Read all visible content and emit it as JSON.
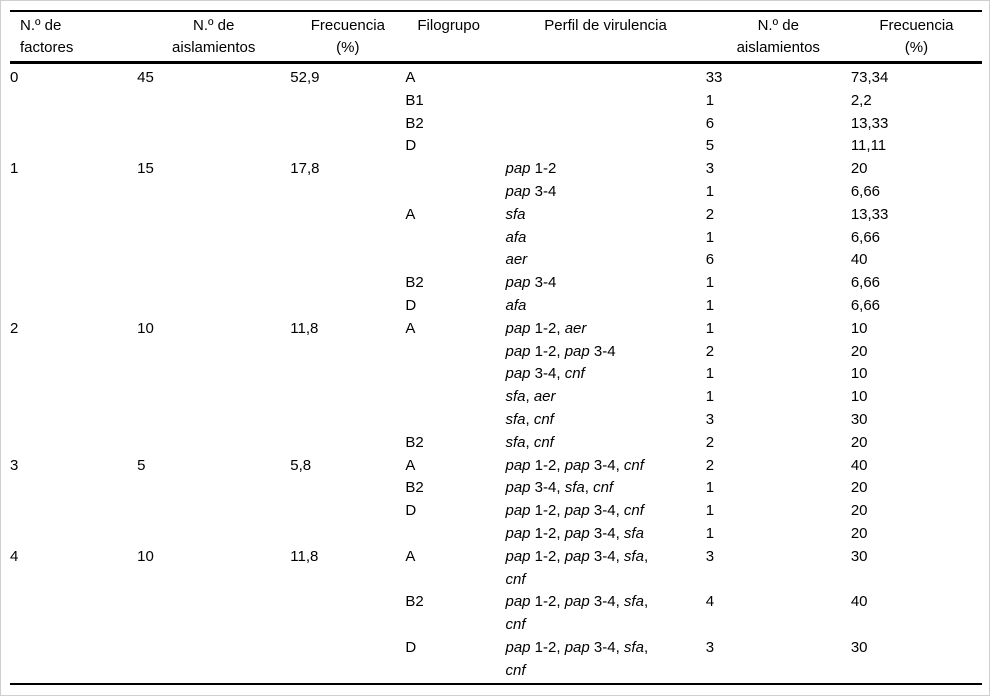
{
  "page": {
    "background": "#ffffff",
    "frame_color": "#cfcfcf",
    "rule_color": "#000000",
    "text_color": "#000000"
  },
  "table": {
    "columns": [
      {
        "id": "factores",
        "label_lines": [
          "N.º de",
          "factores"
        ],
        "align": "left"
      },
      {
        "id": "aislamientos",
        "label_lines": [
          "N.º de",
          "aislamientos"
        ],
        "align": "center"
      },
      {
        "id": "frecuencia",
        "label_lines": [
          "Frecuencia",
          "(%)"
        ],
        "align": "center"
      },
      {
        "id": "filogrupo",
        "label_lines": [
          "Filogrupo"
        ],
        "align": "left"
      },
      {
        "id": "perfil",
        "label_lines": [
          "Perfil de virulencia"
        ],
        "align": "center"
      },
      {
        "id": "aislamientos2",
        "label_lines": [
          "N.º de",
          "aislamientos"
        ],
        "align": "center"
      },
      {
        "id": "frecuencia2",
        "label_lines": [
          "Frecuencia",
          "(%)"
        ],
        "align": "center"
      }
    ],
    "italic_genes": [
      "pap",
      "sfa",
      "afa",
      "aer",
      "cnf"
    ],
    "rows": [
      {
        "factores": "0",
        "aislamientos": "45",
        "frecuencia": "52,9",
        "filogrupo": "A",
        "perfil": "",
        "aislamientos2": "33",
        "frecuencia2": "73,34"
      },
      {
        "factores": "",
        "aislamientos": "",
        "frecuencia": "",
        "filogrupo": "B1",
        "perfil": "",
        "aislamientos2": "1",
        "frecuencia2": "2,2"
      },
      {
        "factores": "",
        "aislamientos": "",
        "frecuencia": "",
        "filogrupo": "B2",
        "perfil": "",
        "aislamientos2": "6",
        "frecuencia2": "13,33"
      },
      {
        "factores": "",
        "aislamientos": "",
        "frecuencia": "",
        "filogrupo": "D",
        "perfil": "",
        "aislamientos2": "5",
        "frecuencia2": "11,11"
      },
      {
        "factores": "1",
        "aislamientos": "15",
        "frecuencia": "17,8",
        "filogrupo": "",
        "perfil": "pap 1-2",
        "aislamientos2": "3",
        "frecuencia2": "20"
      },
      {
        "factores": "",
        "aislamientos": "",
        "frecuencia": "",
        "filogrupo": "",
        "perfil": "pap 3-4",
        "aislamientos2": "1",
        "frecuencia2": "6,66"
      },
      {
        "factores": "",
        "aislamientos": "",
        "frecuencia": "",
        "filogrupo": "A",
        "perfil": "sfa",
        "aislamientos2": "2",
        "frecuencia2": "13,33"
      },
      {
        "factores": "",
        "aislamientos": "",
        "frecuencia": "",
        "filogrupo": "",
        "perfil": "afa",
        "aislamientos2": "1",
        "frecuencia2": "6,66"
      },
      {
        "factores": "",
        "aislamientos": "",
        "frecuencia": "",
        "filogrupo": "",
        "perfil": "aer",
        "aislamientos2": "6",
        "frecuencia2": "40"
      },
      {
        "factores": "",
        "aislamientos": "",
        "frecuencia": "",
        "filogrupo": "B2",
        "perfil": "pap 3-4",
        "aislamientos2": "1",
        "frecuencia2": "6,66"
      },
      {
        "factores": "",
        "aislamientos": "",
        "frecuencia": "",
        "filogrupo": "D",
        "perfil": "afa",
        "aislamientos2": "1",
        "frecuencia2": "6,66"
      },
      {
        "factores": "2",
        "aislamientos": "10",
        "frecuencia": "11,8",
        "filogrupo": "A",
        "perfil": "pap 1-2, aer",
        "aislamientos2": "1",
        "frecuencia2": "10"
      },
      {
        "factores": "",
        "aislamientos": "",
        "frecuencia": "",
        "filogrupo": "",
        "perfil": "pap 1-2, pap 3-4",
        "aislamientos2": "2",
        "frecuencia2": "20"
      },
      {
        "factores": "",
        "aislamientos": "",
        "frecuencia": "",
        "filogrupo": "",
        "perfil": "pap 3-4, cnf",
        "aislamientos2": "1",
        "frecuencia2": "10"
      },
      {
        "factores": "",
        "aislamientos": "",
        "frecuencia": "",
        "filogrupo": "",
        "perfil": "sfa, aer",
        "aislamientos2": "1",
        "frecuencia2": "10"
      },
      {
        "factores": "",
        "aislamientos": "",
        "frecuencia": "",
        "filogrupo": "",
        "perfil": "sfa, cnf",
        "aislamientos2": "3",
        "frecuencia2": "30"
      },
      {
        "factores": "",
        "aislamientos": "",
        "frecuencia": "",
        "filogrupo": "B2",
        "perfil": "sfa, cnf",
        "aislamientos2": "2",
        "frecuencia2": "20"
      },
      {
        "factores": "3",
        "aislamientos": "5",
        "frecuencia": "5,8",
        "filogrupo": "A",
        "perfil": "pap 1-2, pap 3-4, cnf",
        "aislamientos2": "2",
        "frecuencia2": "40"
      },
      {
        "factores": "",
        "aislamientos": "",
        "frecuencia": "",
        "filogrupo": "B2",
        "perfil": "pap 3-4, sfa, cnf",
        "aislamientos2": "1",
        "frecuencia2": "20"
      },
      {
        "factores": "",
        "aislamientos": "",
        "frecuencia": "",
        "filogrupo": "D",
        "perfil": "pap 1-2, pap 3-4, cnf",
        "aislamientos2": "1",
        "frecuencia2": "20"
      },
      {
        "factores": "",
        "aislamientos": "",
        "frecuencia": "",
        "filogrupo": "",
        "perfil": "pap 1-2, pap 3-4, sfa",
        "aislamientos2": "1",
        "frecuencia2": "20"
      },
      {
        "factores": "4",
        "aislamientos": "10",
        "frecuencia": "11,8",
        "filogrupo": "A",
        "perfil": "pap 1-2, pap 3-4, sfa,\ncnf",
        "aislamientos2": "3",
        "frecuencia2": "30"
      },
      {
        "factores": "",
        "aislamientos": "",
        "frecuencia": "",
        "filogrupo": "B2",
        "perfil": "pap 1-2, pap 3-4, sfa,\ncnf",
        "aislamientos2": "4",
        "frecuencia2": "40"
      },
      {
        "factores": "",
        "aislamientos": "",
        "frecuencia": "",
        "filogrupo": "D",
        "perfil": "pap 1-2, pap 3-4, sfa,\ncnf",
        "aislamientos2": "3",
        "frecuencia2": "30"
      }
    ]
  }
}
